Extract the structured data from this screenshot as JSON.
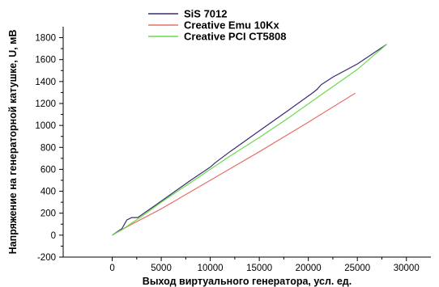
{
  "chart_data": {
    "type": "line",
    "title": "",
    "xlabel": "Выход виртуального генератора, усл. ед.",
    "ylabel": "Напряжение на генераторной катушке, U, мВ",
    "xlim": [
      -5000,
      32500
    ],
    "ylim": [
      -200,
      1900
    ],
    "xticks": [
      0,
      5000,
      10000,
      15000,
      20000,
      25000,
      30000
    ],
    "yticks": [
      -200,
      0,
      200,
      400,
      600,
      800,
      1000,
      1200,
      1400,
      1600,
      1800
    ],
    "grid": false,
    "legend": "top-center",
    "series": [
      {
        "name": "SiS 7012",
        "color": "#3b2a6e",
        "x": [
          0,
          1000,
          1500,
          2000,
          2600,
          3000,
          5000,
          8000,
          10000,
          10500,
          12000,
          15000,
          18000,
          20500,
          20900,
          21300,
          21800,
          22500,
          25000,
          28000
        ],
        "y": [
          0,
          60,
          140,
          160,
          160,
          185,
          310,
          500,
          620,
          660,
          760,
          950,
          1140,
          1300,
          1330,
          1370,
          1400,
          1440,
          1560,
          1740
        ]
      },
      {
        "name": "Creative Emu 10Kx",
        "color": "#e8706a",
        "x": [
          0,
          2000,
          5000,
          10000,
          15000,
          20000,
          24800
        ],
        "y": [
          0,
          100,
          240,
          500,
          760,
          1030,
          1295
        ]
      },
      {
        "name": "Creative PCI CT5808",
        "color": "#66dd4a",
        "x": [
          0,
          1000,
          2000,
          3000,
          5000,
          8000,
          10000,
          10500,
          12000,
          15000,
          18000,
          21000,
          25000,
          28000
        ],
        "y": [
          0,
          50,
          110,
          170,
          300,
          480,
          600,
          630,
          720,
          890,
          1070,
          1260,
          1510,
          1740
        ]
      }
    ]
  }
}
